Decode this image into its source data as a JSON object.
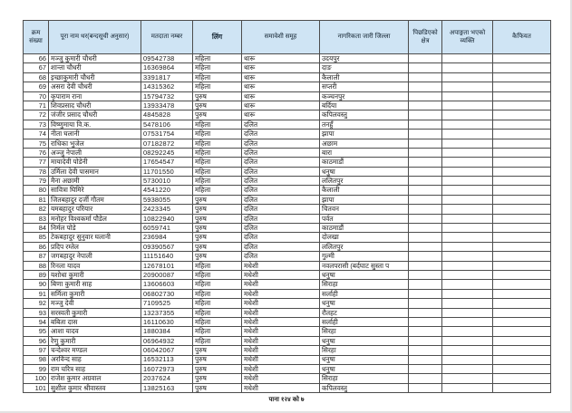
{
  "document": {
    "type": "voter-closed-list-table",
    "footer_page_label": "पाना १२४ को ७"
  },
  "colors": {
    "header_background": "#cfe4f4",
    "grid_border": "#4d4d4d",
    "page_background": "#ffffff"
  },
  "table": {
    "columns": [
      {
        "key": "serial",
        "label": "क्रम संख्या"
      },
      {
        "key": "name",
        "label": "पूरा नाम थर(बन्दसूची अनुसार)"
      },
      {
        "key": "voter_no",
        "label": "मतदाता नम्बर"
      },
      {
        "key": "gender",
        "label": "लिंग"
      },
      {
        "key": "group",
        "label": "समावेशी समूह"
      },
      {
        "key": "district",
        "label": "नागरिकता जारी जिल्ला"
      },
      {
        "key": "backward_area",
        "label": "पिछडिएको क्षेत्र"
      },
      {
        "key": "disability",
        "label": "अपाङ्गता भएको व्यक्ति"
      },
      {
        "key": "remarks",
        "label": "कैफियत"
      }
    ],
    "rows": [
      [
        66,
        "मञ्जु कुमारी चौधरी",
        "09542738",
        "महिला",
        "थारू",
        "उदयपुर",
        "",
        "",
        ""
      ],
      [
        67,
        "शान्ता चौधरी",
        "16369864",
        "महिला",
        "थारू",
        "दाङ",
        "",
        "",
        ""
      ],
      [
        68,
        "इच्छाकुमारी चौधरी",
        "3391817",
        "महिला",
        "थारू",
        "कैलाली",
        "",
        "",
        ""
      ],
      [
        69,
        "असरा देवी चौधरी",
        "14315362",
        "महिला",
        "थारू",
        "सप्तरी",
        "",
        "",
        ""
      ],
      [
        70,
        "कृपाराम राना",
        "15794732",
        "पुरुष",
        "थारू",
        "कञ्चनपुर",
        "",
        "",
        ""
      ],
      [
        71,
        "शिवप्रसाद चौधरी",
        "13933478",
        "पुरुष",
        "थारू",
        "बर्दिया",
        "",
        "",
        ""
      ],
      [
        72,
        "जंजीर प्रसाद चौधरी",
        "4845828",
        "पुरुष",
        "थारू",
        "कपिलवस्तु",
        "",
        "",
        ""
      ],
      [
        73,
        "विष्णुमाया वि.क.",
        "5478106",
        "महिला",
        "दलित",
        "तनहुँ",
        "",
        "",
        ""
      ],
      [
        74,
        "नीता घलानी",
        "07531754",
        "महिला",
        "दलित",
        "झापा",
        "",
        "",
        ""
      ],
      [
        75,
        "राधिका भुजेल",
        "07182872",
        "महिला",
        "दलित",
        "अछाम",
        "",
        "",
        ""
      ],
      [
        76,
        "अञ्जु नेपाली",
        "08292245",
        "महिला",
        "दलित",
        "बारा",
        "",
        "",
        ""
      ],
      [
        77,
        "मायादेवी पोडेनी",
        "17654547",
        "महिला",
        "दलित",
        "काठमाडौं",
        "",
        "",
        ""
      ],
      [
        78,
        "उर्मिला देवी पासमान",
        "11701550",
        "महिला",
        "दलित",
        "धनुषा",
        "",
        "",
        ""
      ],
      [
        79,
        "मैना अछामी",
        "5730010",
        "महिला",
        "दलित",
        "ललितपुर",
        "",
        "",
        ""
      ],
      [
        80,
        "सावित्रा घिमिरे",
        "4541220",
        "महिला",
        "दलित",
        "कैलाली",
        "",
        "",
        ""
      ],
      [
        81,
        "जितबहादुर दर्जी गौतम",
        "5938055",
        "पुरुष",
        "दलित",
        "झापा",
        "",
        "",
        ""
      ],
      [
        82,
        "यमबहादुर परियार",
        "2423345",
        "पुरुष",
        "दलित",
        "चितवन",
        "",
        "",
        ""
      ],
      [
        83,
        "मनोहर विश्वकर्मा पौडेल",
        "10822940",
        "पुरुष",
        "दलित",
        "पर्वत",
        "",
        "",
        ""
      ],
      [
        84,
        "निर्मल पोडे",
        "6059741",
        "पुरुष",
        "दलित",
        "काठमाडौं",
        "",
        "",
        ""
      ],
      [
        85,
        "टेकबहादुर सुनुवार घलानी",
        "236984",
        "पुरुष",
        "दलित",
        "दोलखा",
        "",
        "",
        ""
      ],
      [
        86,
        "प्रदिप रम्तेल",
        "09390567",
        "पुरुष",
        "दलित",
        "ललितपुर",
        "",
        "",
        ""
      ],
      [
        87,
        "जगबहादुर नेपाली",
        "11151640",
        "पुरुष",
        "दलित",
        "गुल्मी",
        "",
        "",
        ""
      ],
      [
        88,
        "रिनला यादव",
        "12678101",
        "महिला",
        "मधेशी",
        "नवलपरासी (बर्दघाट सुस्ता प",
        "",
        "",
        ""
      ],
      [
        89,
        "यशोधा कुमारी",
        "20900087",
        "महिला",
        "मधेशी",
        "धनुषा",
        "",
        "",
        ""
      ],
      [
        90,
        "बिणा कुमारी साह",
        "13606603",
        "महिला",
        "मधेशी",
        "सिराहा",
        "",
        "",
        ""
      ],
      [
        91,
        "सर्मिला कुमारी",
        "06802730",
        "महिला",
        "मधेशी",
        "सर्लाही",
        "",
        "",
        ""
      ],
      [
        92,
        "मञ्जु देवी",
        "7109525",
        "महिला",
        "मधेशी",
        "धनुषा",
        "",
        "",
        ""
      ],
      [
        93,
        "सरस्वती कुमारी",
        "13237355",
        "महिला",
        "मधेशी",
        "रौतहट",
        "",
        "",
        ""
      ],
      [
        94,
        "बबिता दास",
        "16110630",
        "महिला",
        "मधेशी",
        "सर्लाही",
        "",
        "",
        ""
      ],
      [
        95,
        "आशा यादव",
        "1880384",
        "महिला",
        "मधेशी",
        "सिरहा",
        "",
        "",
        ""
      ],
      [
        96,
        "रेणु कुमारी",
        "06964932",
        "महिला",
        "मधेशी",
        "धनुषा",
        "",
        "",
        ""
      ],
      [
        97,
        "चन्देश्वर मण्डल",
        "06042067",
        "पुरुष",
        "मधेशी",
        "सिरहा",
        "",
        "",
        ""
      ],
      [
        98,
        "अरविन्द साह",
        "16532113",
        "पुरुष",
        "मधेशी",
        "धनुषा",
        "",
        "",
        ""
      ],
      [
        99,
        "राम चरित्र साह",
        "16072973",
        "पुरुष",
        "मधेशी",
        "धनुषा",
        "",
        "",
        ""
      ],
      [
        100,
        "राजेश कुमार अग्रवाल",
        "2037624",
        "पुरुष",
        "मधेशी",
        "सिराहा",
        "",
        "",
        ""
      ],
      [
        101,
        "सुशील कुमार श्रीवास्तव",
        "13825163",
        "पुरुष",
        "मधेशी",
        "कपिलवस्तु",
        "",
        "",
        ""
      ]
    ]
  }
}
